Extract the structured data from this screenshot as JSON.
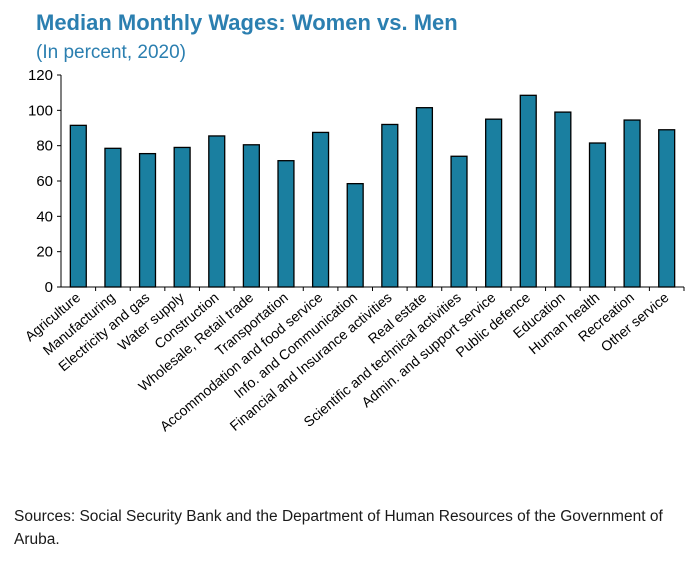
{
  "chart_data": {
    "type": "bar",
    "title": "Median Monthly Wages: Women vs. Men",
    "subtitle": "(In percent, 2020)",
    "xlabel": "",
    "ylabel": "",
    "ylim": [
      0,
      120
    ],
    "yticks": [
      0,
      20,
      40,
      60,
      80,
      100,
      120
    ],
    "grid": false,
    "bar_color": "#1a7fa0",
    "categories": [
      "Agriculture",
      "Manufacturing",
      "Electricity and gas",
      "Water supply",
      "Construction",
      "Wholesale, Retail trade",
      "Transportation",
      "Accommodation and food service",
      "Info. and Communication",
      "Financial and Insurance activities",
      "Real estate",
      "Scientific and technical activities",
      "Admin. and support service",
      "Public defence",
      "Education",
      "Human health",
      "Recreation",
      "Other service"
    ],
    "values": [
      91.5,
      78.5,
      75.5,
      79,
      85.5,
      80.5,
      71.5,
      87.5,
      58.5,
      92,
      101.5,
      74,
      95,
      108.5,
      99,
      81.5,
      94.5,
      89
    ]
  },
  "source": "Sources: Social Security Bank and the Department of Human Resources of the Government of Aruba."
}
